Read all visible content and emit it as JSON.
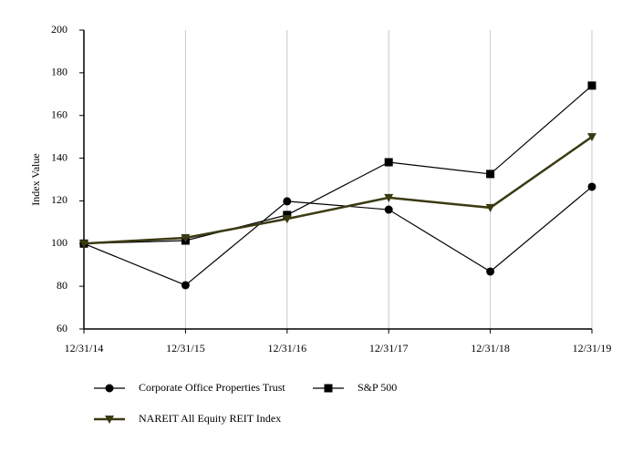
{
  "chart_data": {
    "type": "line",
    "y_label": "Index Value",
    "categories": [
      "12/31/14",
      "12/31/15",
      "12/31/16",
      "12/31/17",
      "12/31/18",
      "12/31/19"
    ],
    "series": [
      {
        "name": "Corporate Office Properties Trust",
        "color": "#000000",
        "marker": "circle",
        "values": [
          100,
          80.5,
          119.8,
          115.9,
          86.9,
          126.6
        ]
      },
      {
        "name": "S&P 500",
        "color": "#000000",
        "marker": "square",
        "values": [
          100,
          101.4,
          113.4,
          138.1,
          132.6,
          174
        ]
      },
      {
        "name": "NAREIT All Equity REIT Index",
        "color": "#3a3a12",
        "marker": "triangle-down",
        "values": [
          100,
          102.7,
          111.6,
          121.5,
          116.8,
          150
        ]
      }
    ],
    "ylim": [
      60,
      200
    ],
    "yticks": [
      60,
      80,
      100,
      120,
      140,
      160,
      180,
      200
    ],
    "grid": "x"
  }
}
